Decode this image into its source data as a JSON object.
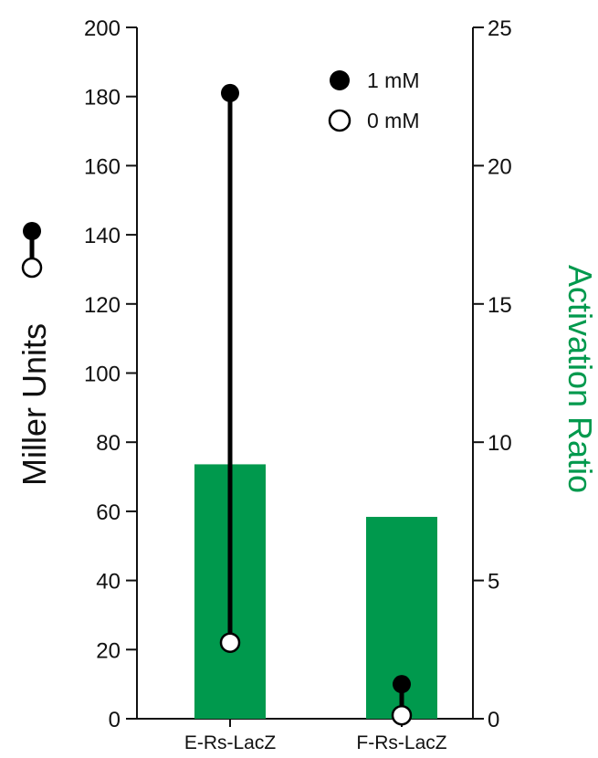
{
  "chart_data": {
    "type": "bar",
    "categories": [
      "E-Rs-LacZ",
      "F-Rs-LacZ"
    ],
    "left_axis": {
      "label": "Miller Units",
      "ylim": [
        0,
        200
      ],
      "ticks": [
        0,
        20,
        40,
        60,
        80,
        100,
        120,
        140,
        160,
        180,
        200
      ]
    },
    "right_axis": {
      "label": "Activation Ratio",
      "ylim": [
        0,
        25
      ],
      "ticks": [
        0,
        5,
        10,
        15,
        20,
        25
      ],
      "color": "#00994d"
    },
    "bars": {
      "axis": "right",
      "values": [
        9.2,
        7.3
      ],
      "color": "#00994d"
    },
    "dumbbells": {
      "axis": "left",
      "series": [
        {
          "name": "1 mM",
          "marker": "filled",
          "values": [
            181,
            10
          ]
        },
        {
          "name": "0 mM",
          "marker": "open",
          "values": [
            22,
            1
          ]
        }
      ]
    },
    "legend": {
      "position": "top-right",
      "entries": [
        {
          "label": "1 mM",
          "marker": "filled"
        },
        {
          "label": "0 mM",
          "marker": "open"
        }
      ]
    },
    "grid": false
  }
}
